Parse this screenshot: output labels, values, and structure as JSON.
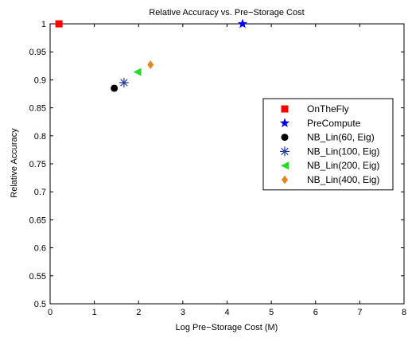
{
  "chart_data": {
    "type": "scatter",
    "title": "Relative Accuracy vs. Pre−Storage Cost",
    "xlabel": "Log Pre−Storage Cost (M)",
    "ylabel": "Relative Accuracy",
    "xlim": [
      0,
      8
    ],
    "ylim": [
      0.5,
      1.0
    ],
    "xticks": [
      "0",
      "1",
      "2",
      "3",
      "4",
      "5",
      "6",
      "7",
      "8"
    ],
    "yticks": [
      "0.5",
      "0.55",
      "0.6",
      "0.65",
      "0.7",
      "0.75",
      "0.8",
      "0.85",
      "0.9",
      "0.95",
      "1"
    ],
    "grid": false,
    "legend_position": "right",
    "series": [
      {
        "name": "OnTheFly",
        "marker": "square",
        "color": "#ff0000",
        "x": 0.2,
        "y": 1.0
      },
      {
        "name": "PreCompute",
        "marker": "star",
        "color": "#0000ff",
        "x": 4.35,
        "y": 1.0
      },
      {
        "name": "NB_Lin(60, Eig)",
        "marker": "circle",
        "color": "#000000",
        "x": 1.45,
        "y": 0.885
      },
      {
        "name": "NB_Lin(100, Eig)",
        "marker": "asterisk",
        "color": "#1f3aa6",
        "x": 1.67,
        "y": 0.895
      },
      {
        "name": "NB_Lin(200, Eig)",
        "marker": "triangle-left",
        "color": "#22dd22",
        "x": 1.97,
        "y": 0.914
      },
      {
        "name": "NB_Lin(400, Eig)",
        "marker": "diamond",
        "color": "#dd8822",
        "x": 2.27,
        "y": 0.927
      }
    ]
  }
}
